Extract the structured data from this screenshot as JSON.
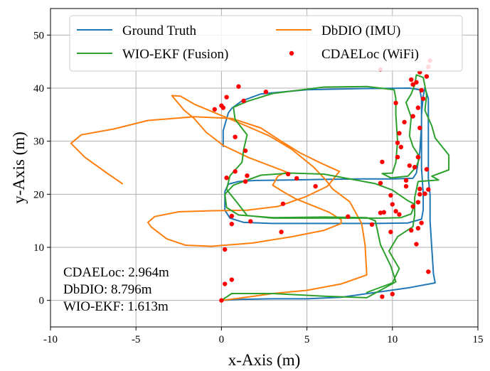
{
  "chart_data": {
    "type": "line",
    "xlabel": "x-Axis (m)",
    "ylabel": "y-Axis (m)",
    "xlim": [
      -10,
      15
    ],
    "ylim": [
      -5,
      55
    ],
    "xticks": [
      "-10",
      "-5",
      "0",
      "5",
      "10",
      "15"
    ],
    "yticks": [
      "0",
      "10",
      "20",
      "30",
      "40",
      "50"
    ],
    "xtick_values": [
      -10,
      -5,
      0,
      5,
      10,
      15
    ],
    "ytick_values": [
      0,
      10,
      20,
      30,
      40,
      50
    ],
    "grid": true,
    "legend_placement": "top",
    "annotations": [
      "CDAELoc: 2.964m",
      "DbDIO: 8.796m",
      "WIO-EKF: 1.613m"
    ],
    "series": [
      {
        "name": "Ground Truth",
        "kind": "line",
        "color": "#1f77b4",
        "points": [
          [
            0.1,
            29
          ],
          [
            0.1,
            32
          ],
          [
            0.4,
            35.3
          ],
          [
            0.6,
            36.2
          ],
          [
            1.2,
            37.6
          ],
          [
            2.3,
            38.9
          ],
          [
            5,
            39.7
          ],
          [
            8,
            39.9
          ],
          [
            11,
            40
          ],
          [
            11.6,
            39.7
          ],
          [
            11.7,
            38
          ],
          [
            11.7,
            33
          ],
          [
            11.6,
            28
          ],
          [
            11.4,
            24
          ],
          [
            11.2,
            23
          ],
          [
            10,
            22.9
          ],
          [
            8,
            22.9
          ],
          [
            6,
            22.8
          ],
          [
            4,
            22.7
          ],
          [
            2,
            22.6
          ],
          [
            1,
            22.4
          ],
          [
            0.4,
            21.9
          ],
          [
            0.2,
            20.5
          ],
          [
            0.2,
            17
          ],
          [
            0.5,
            15.5
          ],
          [
            1.3,
            14.7
          ],
          [
            3,
            14.5
          ],
          [
            6,
            14.5
          ],
          [
            9,
            14.5
          ],
          [
            10.9,
            14.6
          ],
          [
            11.7,
            15.3
          ],
          [
            11.8,
            17
          ],
          [
            11.8,
            20
          ],
          [
            11.7,
            25
          ],
          [
            11.7,
            30
          ],
          [
            11.7,
            35
          ],
          [
            11.8,
            38.5
          ],
          [
            11.9,
            40.1
          ],
          [
            12.1,
            38
          ],
          [
            12.1,
            33
          ],
          [
            12.1,
            28
          ],
          [
            12.1,
            23
          ],
          [
            12.2,
            20
          ],
          [
            12.2,
            15
          ],
          [
            12.3,
            10
          ],
          [
            12.4,
            5
          ],
          [
            12.5,
            3.3
          ],
          [
            11,
            2.4
          ],
          [
            9,
            1.5
          ],
          [
            7,
            0.6
          ],
          [
            5,
            0.3
          ],
          [
            3,
            0.3
          ],
          [
            1,
            0.2
          ],
          [
            0,
            0
          ]
        ]
      },
      {
        "name": "DbDIO (IMU)",
        "kind": "line",
        "color": "#ff7f0e",
        "points": [
          [
            -5.8,
            22
          ],
          [
            -6.7,
            24
          ],
          [
            -8,
            27
          ],
          [
            -8.8,
            29.6
          ],
          [
            -8.2,
            31.2
          ],
          [
            -6.3,
            32.3
          ],
          [
            -4.3,
            33.9
          ],
          [
            -1.6,
            34.6
          ],
          [
            0.6,
            34.3
          ],
          [
            2.3,
            32.5
          ],
          [
            3.4,
            30.2
          ],
          [
            4.6,
            27.8
          ],
          [
            5.8,
            25.9
          ],
          [
            6.9,
            24.3
          ],
          [
            6.2,
            21.5
          ],
          [
            4.9,
            19.5
          ],
          [
            3.3,
            17.7
          ],
          [
            1.5,
            17
          ],
          [
            -0.5,
            16.9
          ],
          [
            -2.5,
            16.7
          ],
          [
            -3.9,
            15.8
          ],
          [
            -4.3,
            14.7
          ],
          [
            -4.1,
            13.8
          ],
          [
            -3.2,
            11.6
          ],
          [
            -2.1,
            10.4
          ],
          [
            -0.6,
            10.2
          ],
          [
            1.8,
            10.8
          ],
          [
            4.1,
            12
          ],
          [
            6,
            13.2
          ],
          [
            7,
            14.5
          ],
          [
            7,
            15.2
          ],
          [
            6.3,
            16.6
          ],
          [
            4.3,
            19.2
          ],
          [
            3.6,
            20.5
          ],
          [
            3,
            21.7
          ],
          [
            3.3,
            23.4
          ],
          [
            3.8,
            24.2
          ],
          [
            1.6,
            26.9
          ],
          [
            0.1,
            29.2
          ],
          [
            -0.9,
            31.7
          ],
          [
            -1.6,
            34.3
          ],
          [
            -2.2,
            35.9
          ],
          [
            -2.9,
            38.6
          ],
          [
            -2.4,
            38.5
          ],
          [
            -1.6,
            37
          ],
          [
            -0.5,
            35.5
          ],
          [
            1,
            33.5
          ],
          [
            2.8,
            31
          ],
          [
            4.1,
            28.5
          ],
          [
            5.4,
            25.1
          ],
          [
            6.1,
            22.7
          ],
          [
            6.5,
            21
          ],
          [
            7.5,
            18.6
          ],
          [
            8.2,
            14.5
          ],
          [
            8.4,
            10.5
          ],
          [
            8.5,
            4.8
          ],
          [
            7,
            3.1
          ],
          [
            5,
            1.9
          ],
          [
            3,
            1.3
          ],
          [
            1,
            0.4
          ],
          [
            0,
            0
          ]
        ]
      },
      {
        "name": "WIO-EKF (Fusion)",
        "kind": "line",
        "color": "#2ca02c",
        "points": [
          [
            0,
            0
          ],
          [
            0.6,
            1.3
          ],
          [
            3,
            1.3
          ],
          [
            6,
            0.8
          ],
          [
            8.5,
            0.5
          ],
          [
            10.2,
            3.5
          ],
          [
            9.9,
            6.5
          ],
          [
            9.3,
            10.5
          ],
          [
            9,
            15
          ],
          [
            8.5,
            15.6
          ],
          [
            6,
            15.7
          ],
          [
            3,
            15.6
          ],
          [
            1,
            16.1
          ],
          [
            0.3,
            17.5
          ],
          [
            0.2,
            20
          ],
          [
            0.7,
            21.7
          ],
          [
            2.3,
            23.6
          ],
          [
            4,
            24
          ],
          [
            6,
            23.8
          ],
          [
            9,
            22
          ],
          [
            10,
            20.8
          ],
          [
            10.9,
            18.8
          ],
          [
            11.3,
            18.1
          ],
          [
            11.1,
            16.3
          ],
          [
            10.5,
            15.6
          ],
          [
            9.3,
            15.5
          ],
          [
            7.5,
            15.5
          ],
          [
            5.5,
            15.5
          ],
          [
            3,
            15.5
          ],
          [
            1.5,
            16
          ],
          [
            0.9,
            18.5
          ],
          [
            0.3,
            20.9
          ],
          [
            0.5,
            23.5
          ],
          [
            1.2,
            26
          ],
          [
            1.3,
            28.5
          ],
          [
            1.5,
            31.2
          ],
          [
            0.8,
            34.1
          ],
          [
            0.7,
            36.4
          ],
          [
            1.5,
            37.5
          ],
          [
            3,
            39
          ],
          [
            6,
            40.2
          ],
          [
            8.5,
            40.3
          ],
          [
            10.1,
            39.7
          ],
          [
            10.2,
            38
          ],
          [
            10.2,
            35
          ],
          [
            10.3,
            30
          ],
          [
            10.2,
            26
          ],
          [
            10,
            24
          ],
          [
            9.4,
            23.9
          ],
          [
            9.9,
            23.1
          ],
          [
            10.9,
            23.4
          ],
          [
            11.4,
            25.2
          ],
          [
            11.6,
            27
          ],
          [
            11.2,
            29
          ],
          [
            11,
            31
          ],
          [
            11.1,
            34.5
          ],
          [
            10.8,
            37.3
          ],
          [
            11.1,
            38.9
          ],
          [
            11.3,
            40.6
          ],
          [
            11.4,
            42.5
          ],
          [
            11.8,
            42
          ],
          [
            12,
            38.8
          ],
          [
            11.9,
            35.8
          ],
          [
            12.3,
            32.9
          ],
          [
            12.5,
            30.6
          ],
          [
            13.3,
            27.4
          ],
          [
            13.3,
            24.6
          ],
          [
            12.3,
            23.4
          ],
          [
            12.7,
            22.7
          ],
          [
            11.5,
            22.4
          ],
          [
            11.3,
            19.4
          ],
          [
            11.3,
            16.1
          ],
          [
            11.2,
            13.9
          ],
          [
            10.3,
            12
          ],
          [
            9.8,
            9.3
          ],
          [
            10.4,
            6
          ],
          [
            10,
            3.3
          ],
          [
            8.5,
            1.5
          ]
        ]
      },
      {
        "name": "CDAELoc (WiFi)",
        "kind": "scatter",
        "color": "#ff0000",
        "points": [
          [
            9.3,
            43.5
          ],
          [
            12.2,
            45.2
          ],
          [
            12.1,
            44
          ],
          [
            11.6,
            43
          ],
          [
            12,
            42.2
          ],
          [
            11.1,
            41.6
          ],
          [
            11.4,
            41.1
          ],
          [
            11.2,
            40.7
          ],
          [
            11.7,
            39.6
          ],
          [
            11.8,
            38
          ],
          [
            1,
            40.3
          ],
          [
            2.6,
            39.3
          ],
          [
            0.3,
            38.3
          ],
          [
            1.3,
            37.6
          ],
          [
            0,
            36.7
          ],
          [
            0.1,
            36.3
          ],
          [
            -0.4,
            36
          ],
          [
            10.2,
            37.2
          ],
          [
            11.5,
            36.3
          ],
          [
            11.2,
            34.7
          ],
          [
            10.7,
            33.6
          ],
          [
            11.6,
            32.5
          ],
          [
            10.4,
            31.5
          ],
          [
            0.8,
            30.8
          ],
          [
            1.4,
            28.2
          ],
          [
            10.3,
            29.7
          ],
          [
            10.5,
            28.9
          ],
          [
            10.3,
            27
          ],
          [
            11.5,
            27
          ],
          [
            9.4,
            26.1
          ],
          [
            11,
            25.4
          ],
          [
            11.3,
            25.1
          ],
          [
            12,
            24.7
          ],
          [
            0.8,
            24.3
          ],
          [
            0.3,
            23.1
          ],
          [
            1.5,
            23.5
          ],
          [
            3.9,
            23.8
          ],
          [
            4.4,
            23
          ],
          [
            1.4,
            22.4
          ],
          [
            9.3,
            22.1
          ],
          [
            5.5,
            21.5
          ],
          [
            10.8,
            22.6
          ],
          [
            10.8,
            21.5
          ],
          [
            11.6,
            21
          ],
          [
            12.1,
            20.9
          ],
          [
            11.9,
            20.1
          ],
          [
            11.6,
            20
          ],
          [
            11.5,
            18.5
          ],
          [
            3.6,
            18.2
          ],
          [
            9.9,
            19.8
          ],
          [
            10,
            18.1
          ],
          [
            11.2,
            17.7
          ],
          [
            10.2,
            16.8
          ],
          [
            9.5,
            16.6
          ],
          [
            0.6,
            15.9
          ],
          [
            7.4,
            15.8
          ],
          [
            10.4,
            16.2
          ],
          [
            9.3,
            16.5
          ],
          [
            11.7,
            14.6
          ],
          [
            1.7,
            14.9
          ],
          [
            0.6,
            14.4
          ],
          [
            8.8,
            14.3
          ],
          [
            11.5,
            13.6
          ],
          [
            11.1,
            13.2
          ],
          [
            3.5,
            12.9
          ],
          [
            9.9,
            12.9
          ],
          [
            11.4,
            10.6
          ],
          [
            0.2,
            9.6
          ],
          [
            0.6,
            3.9
          ],
          [
            0.2,
            3.1
          ],
          [
            12.1,
            5.4
          ],
          [
            10,
            1.2
          ],
          [
            9.4,
            0.7
          ],
          [
            0,
            0
          ]
        ]
      }
    ]
  }
}
